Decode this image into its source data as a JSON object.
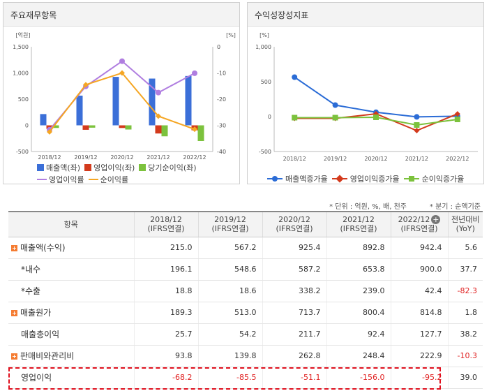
{
  "left_panel": {
    "title": "주요재무항목"
  },
  "right_panel": {
    "title": "수익성장성지표"
  },
  "chart_data": [
    {
      "type": "bar",
      "title": "주요재무항목",
      "categories": [
        "2018/12",
        "2019/12",
        "2020/12",
        "2021/12",
        "2022/12"
      ],
      "y_left": {
        "unit": "[억원]",
        "range": [
          -500,
          1500
        ],
        "ticks": [
          "1,500",
          "1,000",
          "500",
          "0",
          "-500"
        ]
      },
      "y_right": {
        "unit": "[%]",
        "range": [
          -40,
          0
        ],
        "ticks": [
          "0",
          "-10",
          "-20",
          "-30",
          "-40"
        ]
      },
      "series": [
        {
          "name": "매출액(좌)",
          "kind": "bar",
          "axis": "left",
          "color": "#3b6fd8",
          "values": [
            215.0,
            567.2,
            925.4,
            892.8,
            942.4
          ]
        },
        {
          "name": "영업이익(좌)",
          "kind": "bar",
          "axis": "left",
          "color": "#d33a1c",
          "values": [
            -68.2,
            -85.5,
            -51.1,
            -156.0,
            -95.2
          ]
        },
        {
          "name": "당기순이익(좌)",
          "kind": "bar",
          "axis": "left",
          "color": "#7cc23d",
          "values": [
            -50,
            -45,
            -80,
            -210,
            -300
          ]
        },
        {
          "name": "영업이익률",
          "kind": "line",
          "axis": "right",
          "color": "#b07ee0",
          "values": [
            -31.7,
            -15.1,
            -5.5,
            -17.5,
            -10.1
          ]
        },
        {
          "name": "순이익률",
          "kind": "line",
          "axis": "right",
          "color": "#f5a623",
          "values": [
            -32.5,
            -14.5,
            -10.0,
            -26.5,
            -31.5
          ]
        }
      ],
      "grid": false,
      "legend": "bottom"
    },
    {
      "type": "line",
      "title": "수익성장성지표",
      "categories": [
        "2018/12",
        "2019/12",
        "2020/12",
        "2021/12",
        "2022/12"
      ],
      "y": {
        "unit": "[%]",
        "range": [
          -500,
          1000
        ],
        "ticks": [
          "1,000",
          "500",
          "0",
          "-500"
        ]
      },
      "series": [
        {
          "name": "매출액증가율",
          "color": "#2b6cd6",
          "marker": "circle",
          "values": [
            565,
            165,
            63,
            -4,
            5.6
          ]
        },
        {
          "name": "영업이익증가율",
          "color": "#d33a1c",
          "marker": "diamond",
          "values": [
            -25,
            -25,
            40,
            -200,
            39.0
          ]
        },
        {
          "name": "순이익증가율",
          "color": "#7cc23d",
          "marker": "square",
          "values": [
            -15,
            -15,
            -10,
            -120,
            -40
          ]
        }
      ],
      "grid": false,
      "legend": "bottom"
    }
  ],
  "notes": {
    "unit": "* 단위 : 억원, %, 배, 천주",
    "basis": "* 분기 : 순액기준"
  },
  "table": {
    "headers": [
      {
        "line1": "항목",
        "line2": ""
      },
      {
        "line1": "2018/12",
        "line2": "(IFRS연결)"
      },
      {
        "line1": "2019/12",
        "line2": "(IFRS연결)"
      },
      {
        "line1": "2020/12",
        "line2": "(IFRS연결)"
      },
      {
        "line1": "2021/12",
        "line2": "(IFRS연결)"
      },
      {
        "line1": "2022/12",
        "line2": "(IFRS연결)"
      },
      {
        "line1": "전년대비",
        "line2": "(YoY)"
      }
    ],
    "add_icon": "plus-circle-icon",
    "rows": [
      {
        "label": "매출액(수익)",
        "expand": true,
        "indent": false,
        "values": [
          "215.0",
          "567.2",
          "925.4",
          "892.8",
          "942.4",
          "5.6"
        ]
      },
      {
        "label": "*내수",
        "expand": false,
        "indent": true,
        "values": [
          "196.1",
          "548.6",
          "587.2",
          "653.8",
          "900.0",
          "37.7"
        ]
      },
      {
        "label": "*수출",
        "expand": false,
        "indent": true,
        "values": [
          "18.8",
          "18.6",
          "338.2",
          "239.0",
          "42.4",
          "-82.3"
        ]
      },
      {
        "label": "매출원가",
        "expand": true,
        "indent": false,
        "values": [
          "189.3",
          "513.0",
          "713.7",
          "800.4",
          "814.8",
          "1.8"
        ]
      },
      {
        "label": "매출총이익",
        "expand": false,
        "indent": true,
        "values": [
          "25.7",
          "54.2",
          "211.7",
          "92.4",
          "127.7",
          "38.2"
        ]
      },
      {
        "label": "판매비와관리비",
        "expand": true,
        "indent": false,
        "values": [
          "93.8",
          "139.8",
          "262.8",
          "248.4",
          "222.9",
          "-10.3"
        ]
      },
      {
        "label": "영업이익",
        "expand": false,
        "indent": false,
        "values": [
          "-68.2",
          "-85.5",
          "-51.1",
          "-156.0",
          "-95.2",
          "39.0"
        ]
      }
    ]
  }
}
